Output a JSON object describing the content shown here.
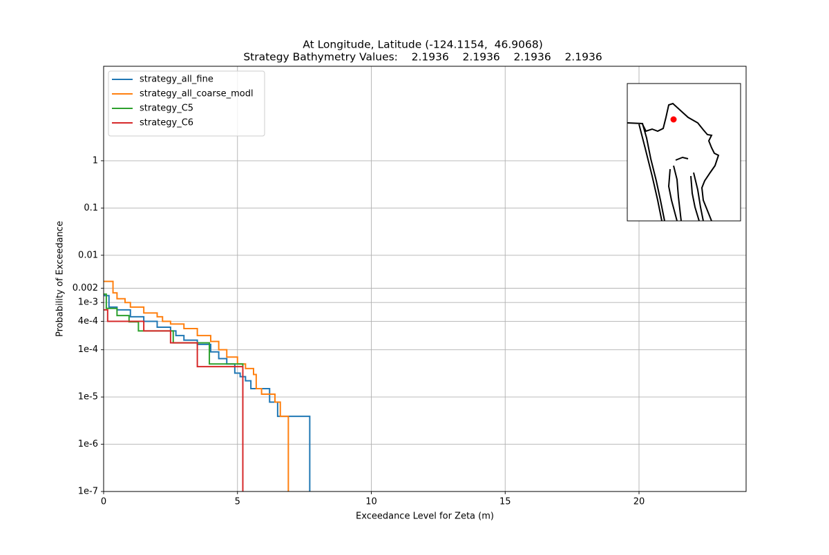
{
  "chart_data": {
    "type": "step",
    "title": "At Longitude, Latitude (-124.1154,  46.9068)",
    "subtitle": "Strategy Bathymetry Values:    2.1936    2.1936    2.1936    2.1936",
    "xlabel": "Exceedance Level for Zeta (m)",
    "ylabel": "Probability of Exceedance",
    "yscale": "log",
    "grid": true,
    "legend": "upper left",
    "xlim": [
      0,
      24
    ],
    "xticks": [
      0,
      5,
      10,
      15,
      20
    ],
    "ylim": [
      1e-07,
      100
    ],
    "yticks": [
      {
        "value": 1e-07,
        "label": "1e-7"
      },
      {
        "value": 1e-06,
        "label": "1e-6"
      },
      {
        "value": 1e-05,
        "label": "1e-5"
      },
      {
        "value": 0.0001,
        "label": "1e-4"
      },
      {
        "value": 0.0004,
        "label": "4e-4"
      },
      {
        "value": 0.001,
        "label": "1e-3"
      },
      0.002,
      0.01,
      0.1,
      1
    ],
    "series": [
      {
        "name": "strategy_all_fine",
        "color": "#1f77b4",
        "x": [
          0,
          0.2,
          0.5,
          1,
          1.5,
          2,
          2.5,
          2.7,
          3,
          3.5,
          4,
          4.3,
          4.6,
          4.9,
          5.1,
          5.3,
          5.5,
          6.2,
          6.5,
          7.7
        ],
        "values": [
          0.0014,
          0.0008,
          0.0007,
          0.0005,
          0.0004,
          0.0003,
          0.00025,
          0.0002,
          0.00016,
          0.00013,
          9e-05,
          6.5e-05,
          5e-05,
          3.2e-05,
          2.7e-05,
          2.2e-05,
          1.5e-05,
          7.8e-06,
          3.9e-06,
          1e-07
        ]
      },
      {
        "name": "strategy_all_coarse_modl",
        "color": "#ff7f0e",
        "x": [
          0,
          0.35,
          0.5,
          0.8,
          1,
          1.5,
          2,
          2.2,
          2.5,
          3,
          3.5,
          4,
          4.3,
          4.6,
          5,
          5.3,
          5.6,
          5.7,
          5.9,
          6.4,
          6.6,
          6.9
        ],
        "values": [
          0.0028,
          0.0016,
          0.0012,
          0.001,
          0.0008,
          0.0006,
          0.0005,
          0.0004,
          0.00035,
          0.00028,
          0.0002,
          0.00015,
          0.0001,
          7e-05,
          5e-05,
          4e-05,
          3e-05,
          1.5e-05,
          1.15e-05,
          7.8e-06,
          3.9e-06,
          1e-07
        ]
      },
      {
        "name": "strategy_C5",
        "color": "#2ca02c",
        "x": [
          0,
          0.1,
          0.5,
          0.95,
          1.3,
          2.6,
          3.95,
          5.2
        ],
        "values": [
          0.0015,
          0.00075,
          0.00053,
          0.00039,
          0.00025,
          0.00014,
          5e-05,
          1e-07
        ]
      },
      {
        "name": "strategy_C6",
        "color": "#d62728",
        "x": [
          0,
          0.15,
          1.5,
          2.5,
          3.5,
          5.2
        ],
        "values": [
          0.0007,
          0.0004,
          0.00025,
          0.00014,
          4.4e-05,
          1e-07
        ]
      }
    ]
  }
}
